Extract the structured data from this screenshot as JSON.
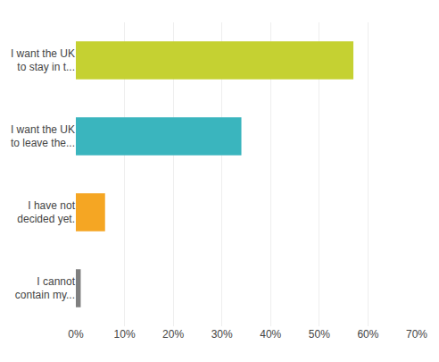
{
  "chart_data": {
    "type": "bar",
    "orientation": "horizontal",
    "categories": [
      "I cannot\ncontain my...",
      "I have not\ndecided yet.",
      "I want the UK\nto leave the...",
      "I want the UK\nto stay in t..."
    ],
    "values": [
      1,
      6,
      34,
      57
    ],
    "colors": [
      "#7f7f7f",
      "#f5a623",
      "#3ab5be",
      "#c5d132"
    ],
    "xlim": [
      0,
      70
    ],
    "xticks": [
      {
        "value": 0,
        "label": "0%"
      },
      {
        "value": 10,
        "label": "10%"
      },
      {
        "value": 20,
        "label": "20%"
      },
      {
        "value": 30,
        "label": "30%"
      },
      {
        "value": 40,
        "label": "40%"
      },
      {
        "value": 50,
        "label": "50%"
      },
      {
        "value": 60,
        "label": "60%"
      },
      {
        "value": 70,
        "label": "70%"
      }
    ],
    "grid": true
  }
}
